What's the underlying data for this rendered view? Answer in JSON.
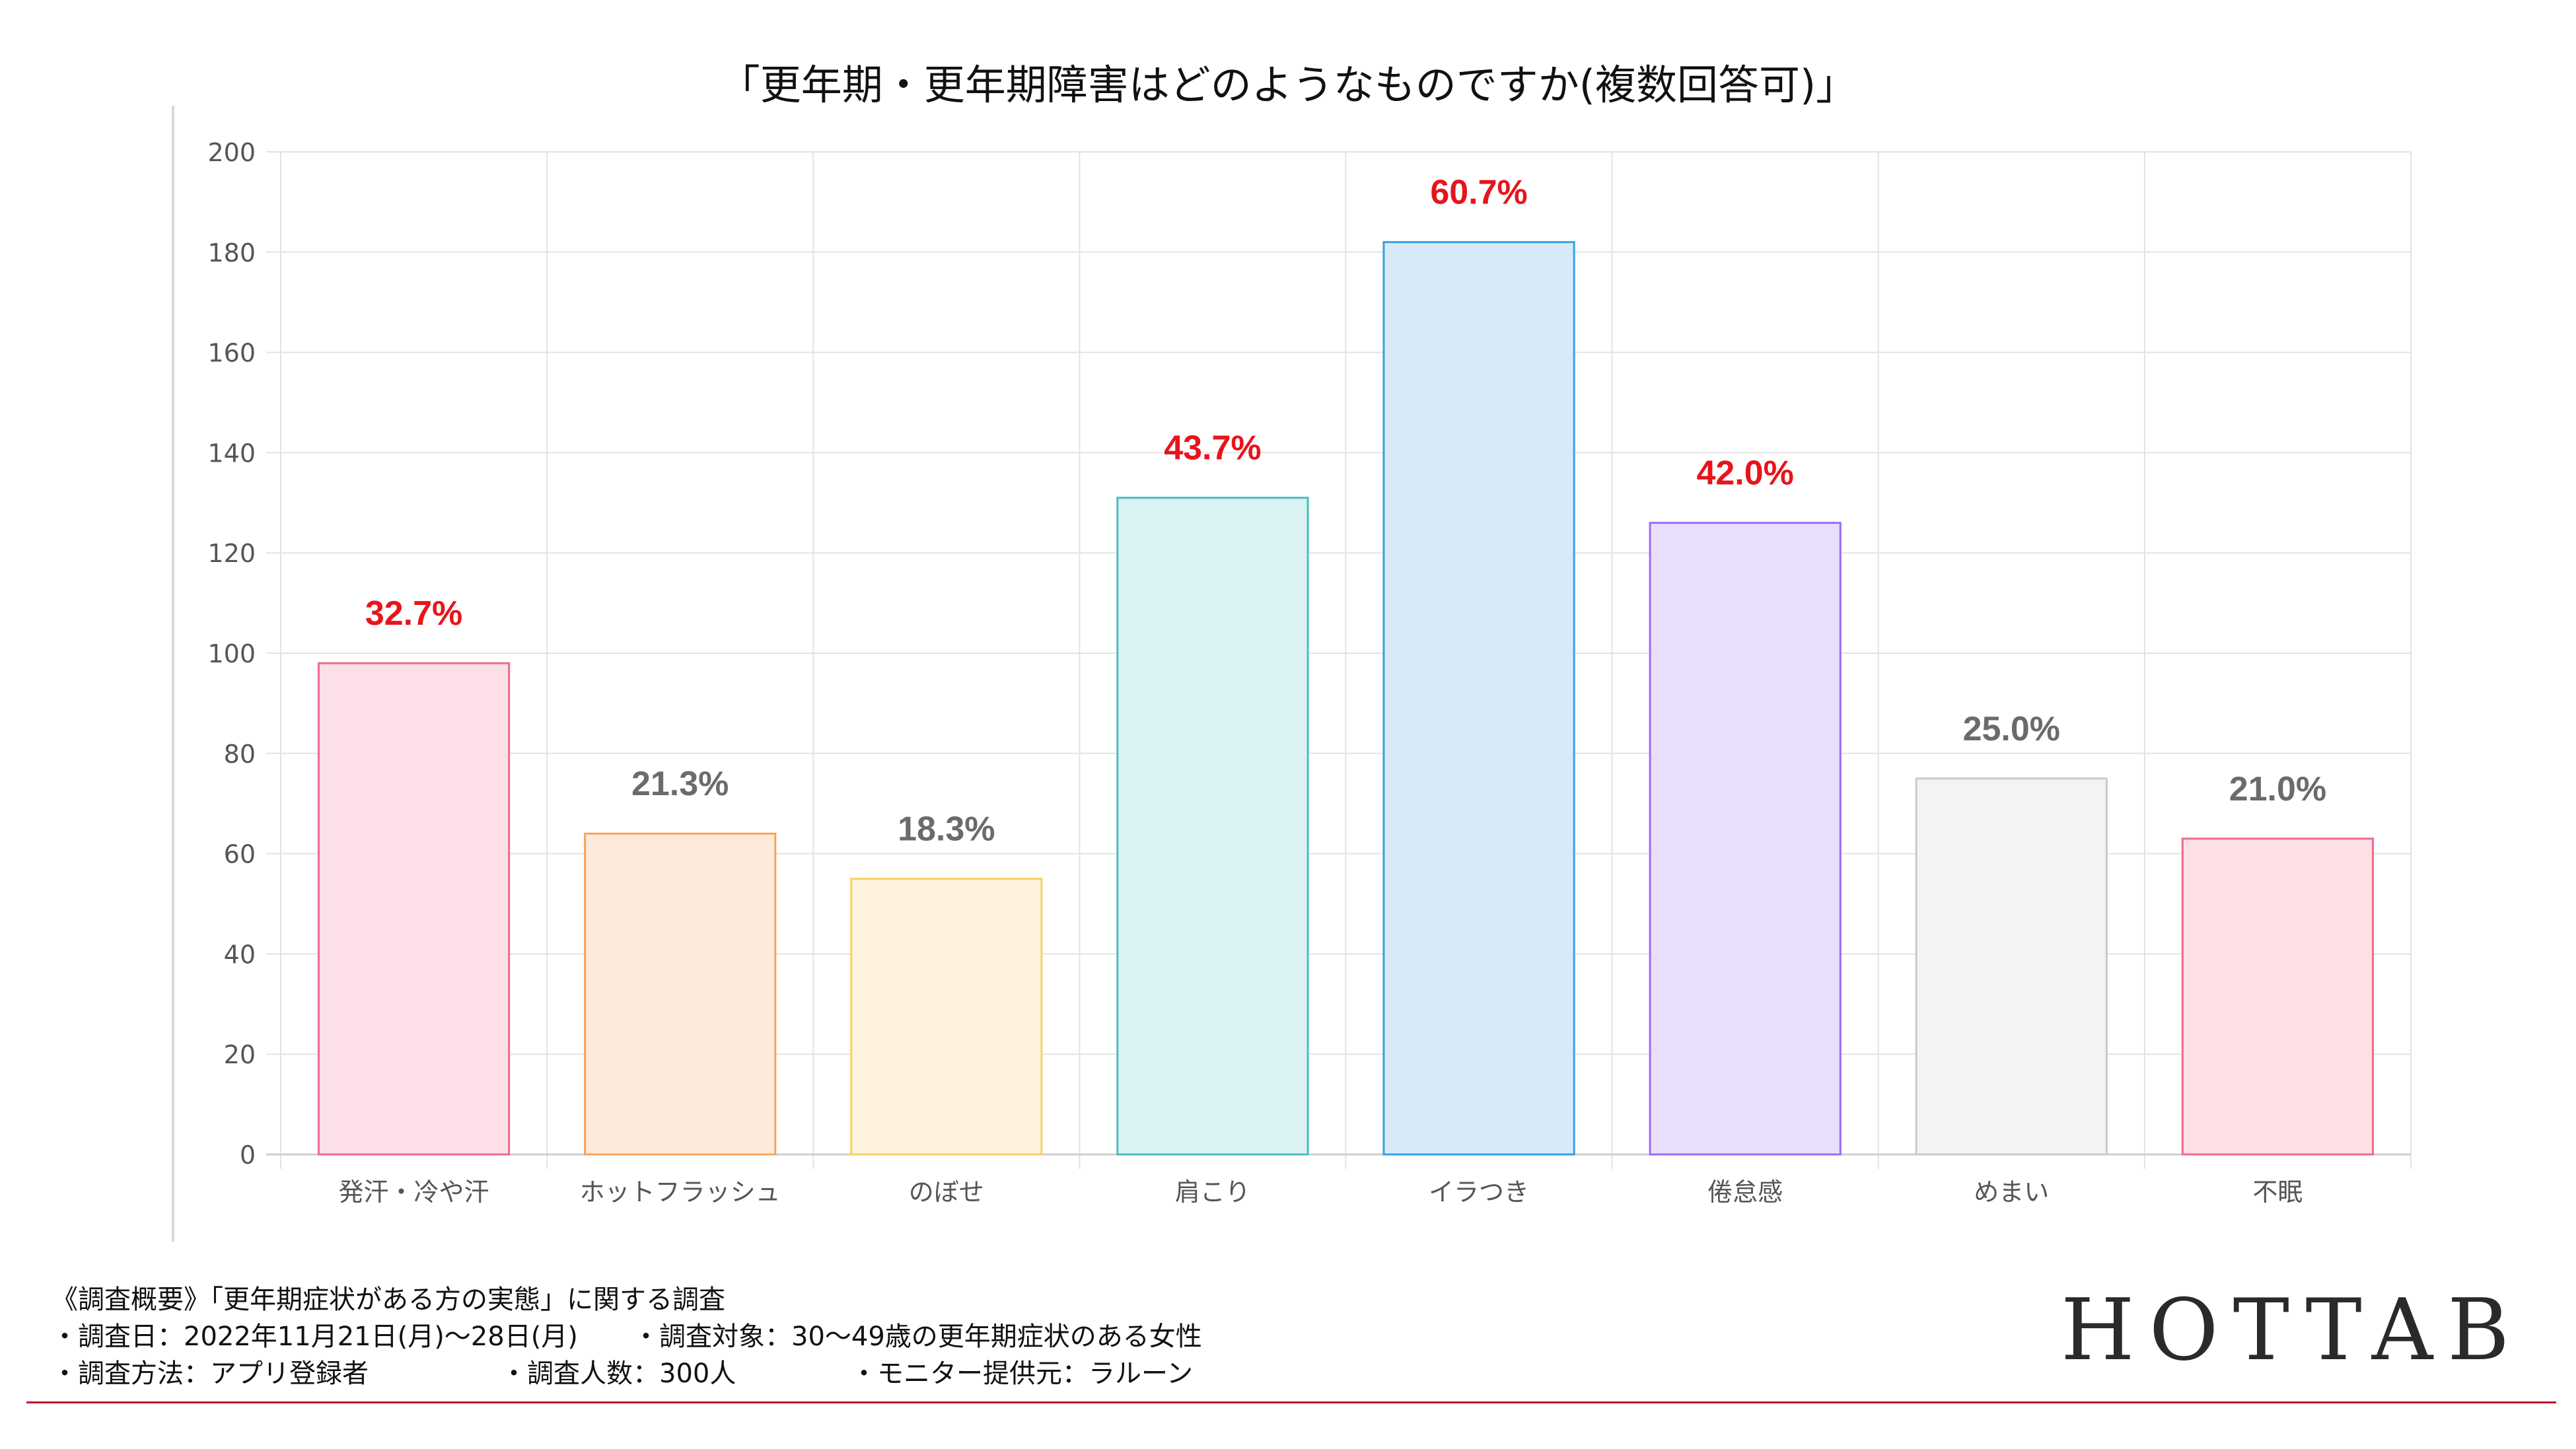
{
  "chart_data": {
    "type": "bar",
    "title": "「更年期・更年期障害はどのようなものですか(複数回答可)」",
    "xlabel": "",
    "ylabel": "",
    "ylim": [
      0,
      200
    ],
    "yticks": [
      0,
      20,
      40,
      60,
      80,
      100,
      120,
      140,
      160,
      180,
      200
    ],
    "grid": true,
    "categories": [
      "発汗・冷や汗",
      "ホットフラッシュ",
      "のぼせ",
      "肩こり",
      "イラつき",
      "倦怠感",
      "めまい",
      "不眠"
    ],
    "values": [
      98,
      64,
      55,
      131,
      182,
      126,
      75,
      63
    ],
    "data_labels": [
      "32.7%",
      "21.3%",
      "18.3%",
      "43.7%",
      "60.7%",
      "42.0%",
      "25.0%",
      "21.0%"
    ],
    "highlighted": [
      true,
      false,
      false,
      true,
      true,
      true,
      false,
      false
    ],
    "bar_fill_colors": [
      "#fde0e7",
      "#feeadb",
      "#fff3dd",
      "#dbf2f2",
      "#d7eafa",
      "#e8dffd",
      "#f2f3f3",
      "#fde0e6"
    ],
    "bar_edge_colors": [
      "#ee6a8d",
      "#f5a45e",
      "#fbcf6a",
      "#4cbcbf",
      "#3aa0e2",
      "#9d6cf2",
      "#c8cacc",
      "#ef6a8c"
    ],
    "highlight_label_color": "#e8141b",
    "normal_label_color": "#6b6b6b"
  },
  "survey_notes": {
    "heading": "《調査概要》「更年期症状がある方の実態」に関する調査",
    "date": "・調査日：2022年11月21日(月)〜28日(月)",
    "target": "・調査対象：30〜49歳の更年期症状のある女性",
    "method": "・調査方法：アプリ登録者",
    "count": "・調査人数：300人",
    "provider": "・モニター提供元：ラルーン"
  },
  "brand": {
    "name": "HOTTAB"
  }
}
